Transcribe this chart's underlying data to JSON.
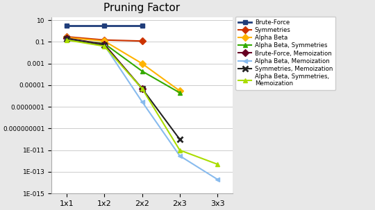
{
  "title": "Pruning Factor",
  "x_labels": [
    "1x1",
    "1x2",
    "2x2",
    "2x3",
    "3x3"
  ],
  "x_positions": [
    0,
    1,
    2,
    3,
    4
  ],
  "series": [
    {
      "label": "Brute-Force",
      "color": "#1F3D7A",
      "marker": "s",
      "markersize": 5,
      "linewidth": 2.0,
      "values": [
        3.0,
        3.0,
        3.0,
        null,
        null
      ]
    },
    {
      "label": "Symmetries",
      "color": "#CC3300",
      "marker": "D",
      "markersize": 5,
      "linewidth": 1.5,
      "values": [
        0.3,
        0.15,
        0.12,
        null,
        null
      ]
    },
    {
      "label": "Alpha Beta",
      "color": "#FFB300",
      "marker": "D",
      "markersize": 5,
      "linewidth": 1.5,
      "values": [
        0.25,
        0.12,
        0.001,
        3e-06,
        null
      ]
    },
    {
      "label": "Alpha Beta, Symmetries",
      "color": "#33AA00",
      "marker": "^",
      "markersize": 5,
      "linewidth": 1.5,
      "values": [
        0.18,
        0.07,
        0.0002,
        2e-06,
        null
      ]
    },
    {
      "label": "Brute-Force, Memoization",
      "color": "#660022",
      "marker": "D",
      "markersize": 5,
      "linewidth": 1.5,
      "values": [
        0.22,
        0.06,
        5e-06,
        null,
        null
      ]
    },
    {
      "label": "Alpha Beta, Memoization",
      "color": "#88BBEE",
      "marker": "<",
      "markersize": 5,
      "linewidth": 1.5,
      "values": [
        0.2,
        0.05,
        3e-07,
        3e-12,
        2e-14
      ]
    },
    {
      "label": "Symmetries, Memoization",
      "color": "#222222",
      "marker": "x",
      "markersize": 6,
      "linewidth": 1.5,
      "markeredgewidth": 2,
      "values": [
        0.2,
        0.05,
        5e-06,
        1e-10,
        null
      ]
    },
    {
      "label": "Alpha Beta, Symmetries,\nMemoization",
      "color": "#AADD00",
      "marker": "^",
      "markersize": 5,
      "linewidth": 1.5,
      "values": [
        0.15,
        0.04,
        5e-06,
        1e-11,
        5e-13
      ]
    }
  ],
  "yticks": [
    10,
    0.1,
    0.001,
    1e-05,
    1e-07,
    1e-09,
    1e-11,
    1e-13,
    1e-15
  ],
  "ytick_labels": [
    "10",
    "0.1",
    "0.001",
    "0.00001",
    "0.0000001",
    "0.000000001",
    "1E-011",
    "1E-013",
    "1E-015"
  ],
  "background_color": "#E8E8E8",
  "plot_bg_color": "#FFFFFF"
}
